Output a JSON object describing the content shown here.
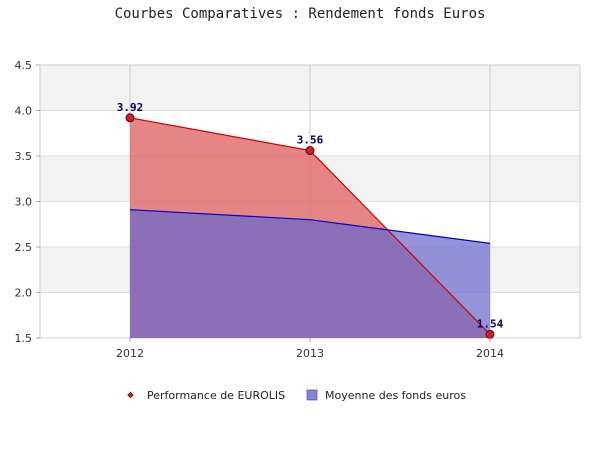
{
  "chart_data": {
    "type": "area",
    "title": "Courbes Comparatives : Rendement fonds Euros",
    "xlabel": "",
    "ylabel": "",
    "x": [
      "2012",
      "2013",
      "2014"
    ],
    "ylim": [
      1.5,
      4.5
    ],
    "yticks": [
      "1.5",
      "2.0",
      "2.5",
      "3.0",
      "3.5",
      "4.0",
      "4.5"
    ],
    "grid": true,
    "legend_position": "bottom",
    "series": [
      {
        "name": "Performance de EUROLIS",
        "values": [
          3.92,
          3.56,
          1.54
        ],
        "data_labels": [
          "3.92",
          "3.56",
          "1.54"
        ],
        "line_color": "#cc0000",
        "fill_color": "#e07070",
        "marker": "diamond"
      },
      {
        "name": "Moyenne des fonds euros",
        "values": [
          2.91,
          2.8,
          2.54
        ],
        "line_color": "#0000cc",
        "fill_color": "#6666cc"
      }
    ]
  }
}
